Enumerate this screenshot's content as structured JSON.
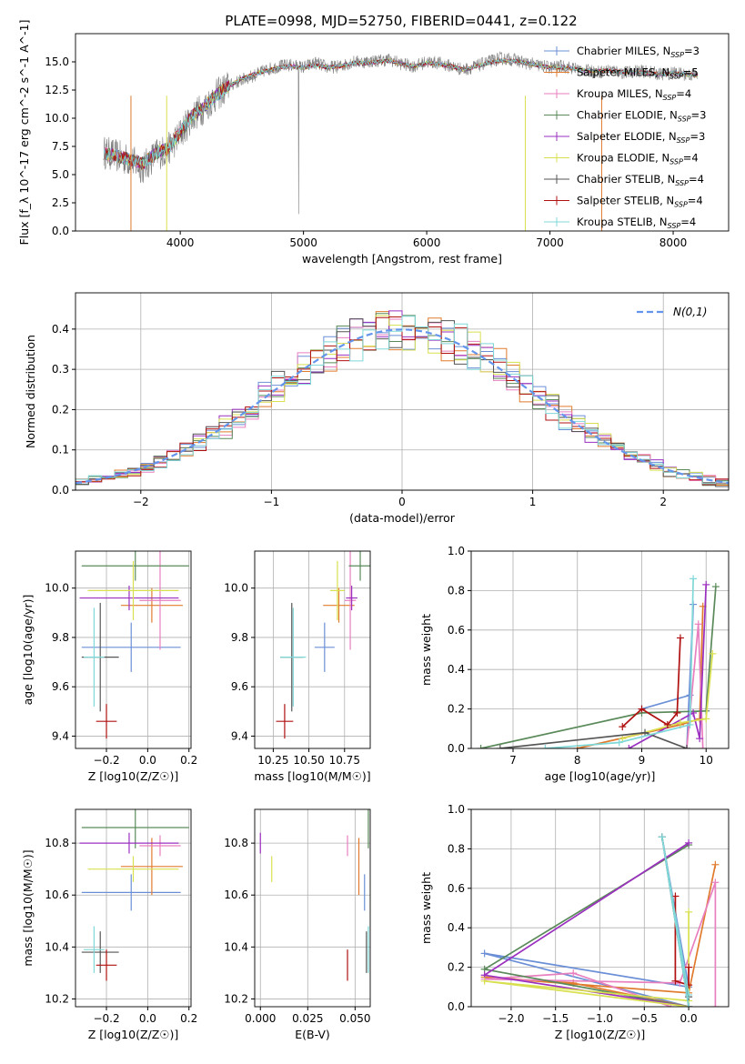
{
  "figure": {
    "title": "PLATE=0998, MJD=52750, FIBERID=0441, z=0.122"
  },
  "chart_data": [
    {
      "id": "spectrum",
      "type": "line",
      "title": "PLATE=0998, MJD=52750, FIBERID=0441, z=0.122",
      "xlabel": "wavelength [Angstrom, rest frame]",
      "ylabel": "Flux [f_λ 10^-17 erg cm^-2 s^-1 A^-1]",
      "xlim": [
        3150,
        8450
      ],
      "ylim": [
        0,
        17.5
      ],
      "xticks": [
        4000,
        5000,
        6000,
        7000,
        8000
      ],
      "yticks": [
        0.0,
        2.5,
        5.0,
        7.5,
        10.0,
        12.5,
        15.0
      ],
      "grid": false,
      "legend_position": "upper right",
      "observed": {
        "color": "#808080",
        "x": [
          3380,
          3500,
          3600,
          3700,
          3800,
          3900,
          4000,
          4100,
          4200,
          4300,
          4400,
          4500,
          4600,
          4700,
          4800,
          4900,
          5000,
          5100,
          5200,
          5300,
          5400,
          5500,
          5600,
          5700,
          5800,
          5900,
          6000,
          6100,
          6200,
          6300,
          6400,
          6500,
          6600,
          6700,
          6800,
          6900,
          7000,
          7100,
          7200,
          7300,
          7400,
          7500,
          7600,
          7700,
          7800,
          7900,
          8000,
          8100,
          8200
        ],
        "y": [
          7.0,
          6.6,
          6.2,
          5.6,
          6.8,
          7.2,
          8.6,
          10.2,
          11.0,
          12.1,
          12.9,
          13.4,
          13.8,
          14.3,
          14.6,
          14.7,
          14.5,
          14.9,
          14.5,
          14.6,
          15.0,
          15.0,
          15.1,
          15.2,
          14.8,
          14.6,
          15.0,
          14.9,
          14.6,
          14.3,
          14.6,
          15.0,
          15.3,
          15.2,
          14.9,
          14.7,
          14.5,
          14.6,
          14.4,
          14.2,
          14.1,
          14.3,
          14.0,
          14.2,
          14.1,
          13.9,
          14.0,
          13.9,
          13.8
        ]
      },
      "models": {
        "x": [
          3380,
          3500,
          3600,
          3700,
          3800,
          3900,
          4000,
          4100,
          4200,
          4300,
          4400,
          4500,
          4600,
          4700,
          4800,
          4900,
          5000,
          5100,
          5200,
          5300,
          5400,
          5500,
          5600,
          5700,
          5800,
          5900,
          6000,
          6100,
          6200,
          6300,
          6400,
          6500,
          6600,
          6700,
          6800,
          6900,
          7000,
          7100,
          7200,
          7300,
          7400,
          7500,
          7600,
          7700,
          7800,
          7900,
          8000,
          8100,
          8200
        ],
        "y": [
          6.9,
          6.6,
          6.3,
          6.0,
          6.9,
          7.3,
          8.8,
          10.2,
          11.1,
          12.1,
          12.9,
          13.5,
          13.9,
          14.2,
          14.5,
          14.6,
          14.5,
          14.7,
          14.5,
          14.6,
          14.9,
          14.9,
          15.0,
          15.1,
          14.8,
          14.6,
          14.9,
          14.8,
          14.6,
          14.3,
          14.6,
          14.9,
          15.1,
          15.1,
          14.9,
          14.7,
          14.5,
          14.5,
          14.4,
          14.2,
          14.2,
          14.2,
          14.1,
          14.1,
          14.0,
          13.9,
          14.0,
          13.9,
          13.8
        ]
      }
    },
    {
      "id": "residuals",
      "type": "histogram",
      "xlabel": "(data-model)/error",
      "ylabel": "Normed distribution",
      "xlim": [
        -2.5,
        2.5
      ],
      "ylim": [
        0,
        0.49
      ],
      "xticks": [
        -2,
        -1,
        0,
        1,
        2
      ],
      "yticks": [
        0.0,
        0.1,
        0.2,
        0.3,
        0.4
      ],
      "grid": true,
      "bin_width": 0.1,
      "legend": {
        "label": "N(0,1)",
        "position": "upper right",
        "color": "#6495ed",
        "style": "dashed"
      }
    },
    {
      "id": "age_vs_Z",
      "type": "errorbar",
      "xlabel": "Z [log10(Z/Z☉)]",
      "ylabel": "age [log10(age/yr)]",
      "xlim": [
        -0.35,
        0.21
      ],
      "ylim": [
        9.35,
        10.15
      ],
      "xticks": [
        -0.2,
        0.0,
        0.2
      ],
      "yticks": [
        9.4,
        9.6,
        9.8,
        10.0
      ],
      "grid": true,
      "points": [
        {
          "x": -0.08,
          "xerr": 0.24,
          "y": 9.76,
          "yerr": 0.1
        },
        {
          "x": 0.02,
          "xerr": 0.15,
          "y": 9.93,
          "yerr": 0.07
        },
        {
          "x": 0.06,
          "xerr": 0.1,
          "y": 9.95,
          "yerr": 0.2
        },
        {
          "x": -0.06,
          "xerr": 0.26,
          "y": 10.09,
          "yerr": 0.06
        },
        {
          "x": -0.09,
          "xerr": 0.24,
          "y": 9.96,
          "yerr": 0.05
        },
        {
          "x": -0.07,
          "xerr": 0.22,
          "y": 9.99,
          "yerr": 0.12
        },
        {
          "x": -0.23,
          "xerr": 0.09,
          "y": 9.72,
          "yerr": 0.22
        },
        {
          "x": -0.2,
          "xerr": 0.05,
          "y": 9.46,
          "yerr": 0.07
        },
        {
          "x": -0.26,
          "xerr": 0.05,
          "y": 9.72,
          "yerr": 0.2
        }
      ]
    },
    {
      "id": "age_vs_mass",
      "type": "errorbar",
      "xlabel": "mass [log10(M/M☉)]",
      "xlim": [
        10.12,
        10.93
      ],
      "ylim": [
        9.35,
        10.15
      ],
      "xticks": [
        10.25,
        10.5,
        10.75
      ],
      "yticks": [
        9.4,
        9.6,
        9.8,
        10.0
      ],
      "grid": true,
      "points": [
        {
          "x": 10.61,
          "xerr": 0.07,
          "y": 9.76,
          "yerr": 0.1
        },
        {
          "x": 10.71,
          "xerr": 0.11,
          "y": 9.93,
          "yerr": 0.07
        },
        {
          "x": 10.79,
          "xerr": 0.04,
          "y": 9.95,
          "yerr": 0.2
        },
        {
          "x": 10.86,
          "xerr": 0.08,
          "y": 10.09,
          "yerr": 0.06
        },
        {
          "x": 10.8,
          "xerr": 0.04,
          "y": 9.96,
          "yerr": 0.05
        },
        {
          "x": 10.7,
          "xerr": 0.05,
          "y": 9.99,
          "yerr": 0.12
        },
        {
          "x": 10.38,
          "xerr": 0.08,
          "y": 9.72,
          "yerr": 0.22
        },
        {
          "x": 10.33,
          "xerr": 0.06,
          "y": 9.46,
          "yerr": 0.07
        },
        {
          "x": 10.39,
          "xerr": 0.09,
          "y": 9.72,
          "yerr": 0.2
        }
      ]
    },
    {
      "id": "massweight_vs_age",
      "type": "line",
      "xlabel": "age [log10(age/yr)]",
      "ylabel": "mass weight",
      "xlim": [
        6.35,
        10.35
      ],
      "ylim": [
        0,
        1
      ],
      "xticks": [
        7,
        8,
        9,
        10
      ],
      "yticks": [
        0.0,
        0.2,
        0.4,
        0.6,
        0.8,
        1.0
      ],
      "grid": true,
      "series": [
        {
          "x": [
            9.0,
            9.75,
            9.8,
            9.7
          ],
          "y": [
            0.2,
            0.27,
            0.73,
            0.0
          ]
        },
        {
          "x": [
            8.0,
            9.6,
            9.9,
            9.95
          ],
          "y": [
            0.0,
            0.12,
            0.15,
            0.72
          ]
        },
        {
          "x": [
            9.7,
            9.88,
            9.95
          ],
          "y": [
            0.0,
            0.63,
            0.0
          ]
        },
        {
          "x": [
            6.5,
            9.0,
            10.0,
            10.15
          ],
          "y": [
            0.0,
            0.18,
            0.19,
            0.82
          ]
        },
        {
          "x": [
            8.8,
            9.8,
            9.9,
            10.0
          ],
          "y": [
            0.0,
            0.18,
            0.05,
            0.83
          ]
        },
        {
          "x": [
            8.7,
            9.6,
            10.0,
            10.1
          ],
          "y": [
            0.05,
            0.13,
            0.15,
            0.48
          ]
        },
        {
          "x": [
            6.8,
            9.05,
            9.7
          ],
          "y": [
            0.0,
            0.08,
            0.0
          ]
        },
        {
          "x": [
            8.7,
            9.0,
            9.4,
            9.55,
            9.6
          ],
          "y": [
            0.11,
            0.2,
            0.12,
            0.18,
            0.56
          ]
        },
        {
          "x": [
            7.5,
            8.65,
            9.75,
            9.8
          ],
          "y": [
            0.0,
            0.03,
            0.12,
            0.86
          ]
        }
      ]
    },
    {
      "id": "mass_vs_Z",
      "type": "errorbar",
      "xlabel": "Z [log10(Z/Z☉)]",
      "ylabel": "mass [log10(M/M☉)]",
      "xlim": [
        -0.35,
        0.21
      ],
      "ylim": [
        10.17,
        10.93
      ],
      "xticks": [
        -0.2,
        0.0,
        0.2
      ],
      "yticks": [
        10.2,
        10.4,
        10.6,
        10.8
      ],
      "grid": true,
      "points": [
        {
          "x": -0.08,
          "xerr": 0.24,
          "y": 10.61,
          "yerr": 0.07
        },
        {
          "x": 0.02,
          "xerr": 0.15,
          "y": 10.71,
          "yerr": 0.11
        },
        {
          "x": 0.06,
          "xerr": 0.1,
          "y": 10.79,
          "yerr": 0.04
        },
        {
          "x": -0.06,
          "xerr": 0.26,
          "y": 10.86,
          "yerr": 0.08
        },
        {
          "x": -0.09,
          "xerr": 0.24,
          "y": 10.8,
          "yerr": 0.04
        },
        {
          "x": -0.07,
          "xerr": 0.22,
          "y": 10.7,
          "yerr": 0.05
        },
        {
          "x": -0.23,
          "xerr": 0.09,
          "y": 10.38,
          "yerr": 0.08
        },
        {
          "x": -0.2,
          "xerr": 0.05,
          "y": 10.33,
          "yerr": 0.06
        },
        {
          "x": -0.26,
          "xerr": 0.05,
          "y": 10.39,
          "yerr": 0.09
        }
      ]
    },
    {
      "id": "mass_vs_EBV",
      "type": "errorbar",
      "xlabel": "E(B-V)",
      "xlim": [
        -0.003,
        0.058
      ],
      "ylim": [
        10.17,
        10.93
      ],
      "xticks": [
        0.0,
        0.025,
        0.05
      ],
      "yticks": [
        10.2,
        10.4,
        10.6,
        10.8
      ],
      "grid": true,
      "points": [
        {
          "x": 0.055,
          "y": 10.61,
          "yerr": 0.07
        },
        {
          "x": 0.052,
          "y": 10.71,
          "yerr": 0.11
        },
        {
          "x": 0.046,
          "y": 10.79,
          "yerr": 0.04
        },
        {
          "x": 0.057,
          "y": 10.86,
          "yerr": 0.08
        },
        {
          "x": 0.0,
          "y": 10.8,
          "yerr": 0.04
        },
        {
          "x": 0.006,
          "y": 10.7,
          "yerr": 0.05
        },
        {
          "x": 0.056,
          "y": 10.38,
          "yerr": 0.08
        },
        {
          "x": 0.046,
          "y": 10.33,
          "yerr": 0.06
        },
        {
          "x": 0.057,
          "y": 10.39,
          "yerr": 0.09
        }
      ]
    },
    {
      "id": "massweight_vs_Z",
      "type": "line",
      "xlabel": "Z [log10(Z/Z☉)]",
      "ylabel": "mass weight",
      "xlim": [
        -2.45,
        0.45
      ],
      "ylim": [
        0,
        1
      ],
      "xticks": [
        -2.0,
        -1.5,
        -1.0,
        -0.5,
        0.0
      ],
      "yticks": [
        0.0,
        0.2,
        0.4,
        0.6,
        0.8,
        1.0
      ],
      "grid": true,
      "series": [
        {
          "x": [
            0.0,
            -2.3,
            0.0,
            -0.3
          ],
          "y": [
            0.0,
            0.27,
            0.1,
            0.86
          ]
        },
        {
          "x": [
            0.0,
            -1.3,
            -2.3,
            0.0,
            0.3
          ],
          "y": [
            0.0,
            0.12,
            0.15,
            0.07,
            0.72
          ]
        },
        {
          "x": [
            -0.2,
            -1.3,
            -2.3,
            -0.1,
            0.3,
            0.3
          ],
          "y": [
            0.0,
            0.17,
            0.14,
            0.12,
            0.63,
            0.0
          ]
        },
        {
          "x": [
            0.0,
            -2.3,
            0.0
          ],
          "y": [
            0.0,
            0.19,
            0.82
          ]
        },
        {
          "x": [
            0.0,
            -2.3,
            0.0
          ],
          "y": [
            0.0,
            0.16,
            0.83
          ]
        },
        {
          "x": [
            0.0,
            -2.3,
            0.0,
            0.0
          ],
          "y": [
            0.0,
            0.13,
            0.03,
            0.48
          ]
        },
        {
          "x": [
            0.0,
            -0.3,
            0.0
          ],
          "y": [
            0.0,
            0.86,
            0.05
          ]
        },
        {
          "x": [
            -0.15,
            -0.15,
            0.0,
            0.0
          ],
          "y": [
            0.56,
            0.13,
            0.11,
            0.2
          ]
        },
        {
          "x": [
            0.0,
            -0.3,
            0.0
          ],
          "y": [
            0.0,
            0.86,
            0.06
          ]
        }
      ]
    }
  ],
  "legend_entries": [
    {
      "label": "Chabrier MILES, N_SSP=3",
      "color": "#6b8fd6"
    },
    {
      "label": "Salpeter MILES, N_SSP=5",
      "color": "#e07b2e"
    },
    {
      "label": "Kroupa MILES, N_SSP=4",
      "color": "#e87fbf"
    },
    {
      "label": "Chabrier ELODIE, N_SSP=3",
      "color": "#5a8a5a"
    },
    {
      "label": "Salpeter ELODIE, N_SSP=3",
      "color": "#9b30c0"
    },
    {
      "label": "Kroupa ELODIE, N_SSP=4",
      "color": "#d8e050"
    },
    {
      "label": "Chabrier STELIB, N_SSP=4",
      "color": "#555555"
    },
    {
      "label": "Salpeter STELIB, N_SSP=4",
      "color": "#b01010"
    },
    {
      "label": "Kroupa STELIB, N_SSP=4",
      "color": "#80d8d8"
    }
  ]
}
